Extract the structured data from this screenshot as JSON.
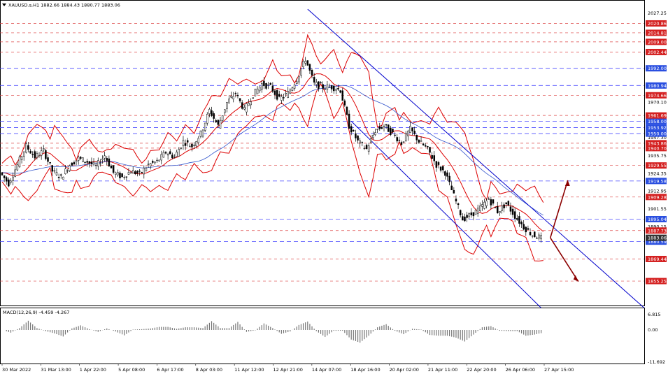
{
  "header": {
    "symbol_info": "XAUUSD.s,H1  1882.66 1884.43 1880.77 1883.06"
  },
  "macd": {
    "label": "MACD(12,26,9) -4.459 -4.267",
    "ticks": [
      "6.815",
      "0.00",
      "-11.692"
    ]
  },
  "colors": {
    "blue_channel": "#0000cc",
    "red_bands": "#dd0000",
    "support_line": "#4a4aff",
    "resistance_line": "#dd4444",
    "arrow": "#8b0000",
    "candle": "#000000"
  },
  "chart_data": {
    "type": "candlestick",
    "title": "XAUUSD.s,H1",
    "last_bar": {
      "open": 1882.66,
      "high": 1884.43,
      "low": 1880.77,
      "close": 1883.06
    },
    "ylim": [
      1840,
      2035
    ],
    "price_ticks": [
      2027.25,
      1970.1,
      1947.3,
      1935.75,
      1924.35,
      1912.95,
      1901.55,
      1890.15
    ],
    "time_ticks": [
      "30 Mar 2022",
      "31 Mar 13:00",
      "1 Apr 22:00",
      "5 Apr 08:00",
      "6 Apr 17:00",
      "8 Apr 03:00",
      "11 Apr 12:00",
      "12 Apr 21:00",
      "14 Apr 07:00",
      "18 Apr 16:00",
      "20 Apr 02:00",
      "21 Apr 11:00",
      "22 Apr 20:00",
      "26 Apr 06:00",
      "27 Apr 15:00"
    ],
    "support_levels": [
      1992.0,
      1980.94,
      1958.0,
      1953.92,
      1950.0,
      1919.58,
      1895.04,
      1880.59
    ],
    "resistance_levels": [
      2020.86,
      2014.81,
      2009.0,
      2002.44,
      1974.66,
      1961.69,
      1943.86,
      1940.7,
      1929.55,
      1909.28,
      1887.73,
      1869.44,
      1855.25
    ],
    "current_price": 1883.06,
    "price_path": [
      [
        0,
        1925
      ],
      [
        4,
        1918
      ],
      [
        8,
        1930
      ],
      [
        12,
        1942
      ],
      [
        16,
        1935
      ],
      [
        20,
        1939
      ],
      [
        24,
        1926
      ],
      [
        28,
        1922
      ],
      [
        32,
        1930
      ],
      [
        36,
        1934
      ],
      [
        40,
        1932
      ],
      [
        44,
        1929
      ],
      [
        48,
        1936
      ],
      [
        52,
        1925
      ],
      [
        56,
        1922
      ],
      [
        60,
        1926
      ],
      [
        64,
        1924
      ],
      [
        68,
        1930
      ],
      [
        72,
        1932
      ],
      [
        76,
        1938
      ],
      [
        80,
        1935
      ],
      [
        84,
        1945
      ],
      [
        88,
        1942
      ],
      [
        92,
        1950
      ],
      [
        96,
        1965
      ],
      [
        100,
        1955
      ],
      [
        104,
        1970
      ],
      [
        108,
        1976
      ],
      [
        112,
        1965
      ],
      [
        116,
        1975
      ],
      [
        120,
        1982
      ],
      [
        124,
        1980
      ],
      [
        128,
        1972
      ],
      [
        132,
        1976
      ],
      [
        136,
        1985
      ],
      [
        140,
        1998
      ],
      [
        144,
        1982
      ],
      [
        148,
        1980
      ],
      [
        152,
        1980
      ],
      [
        156,
        1978
      ],
      [
        160,
        1955
      ],
      [
        164,
        1945
      ],
      [
        168,
        1940
      ],
      [
        172,
        1952
      ],
      [
        176,
        1955
      ],
      [
        180,
        1950
      ],
      [
        184,
        1944
      ],
      [
        188,
        1953
      ],
      [
        192,
        1945
      ],
      [
        196,
        1940
      ],
      [
        200,
        1930
      ],
      [
        204,
        1925
      ],
      [
        208,
        1910
      ],
      [
        212,
        1895
      ],
      [
        216,
        1898
      ],
      [
        220,
        1902
      ],
      [
        224,
        1908
      ],
      [
        228,
        1900
      ],
      [
        232,
        1905
      ],
      [
        236,
        1897
      ],
      [
        240,
        1890
      ],
      [
        244,
        1885
      ],
      [
        248,
        1883
      ]
    ],
    "forecast_up": [
      [
        1882,
        1920
      ]
    ],
    "forecast_down": [
      [
        1882,
        1855
      ]
    ]
  }
}
